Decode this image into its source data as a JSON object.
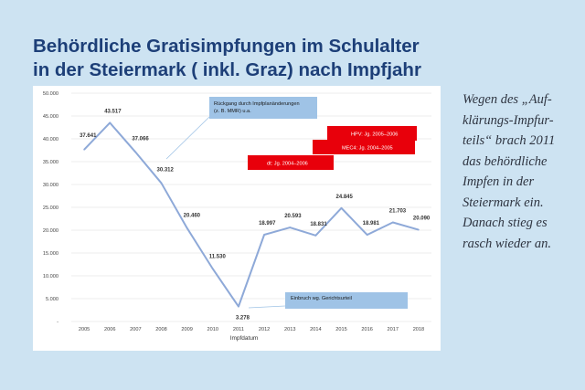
{
  "title_lines": [
    "Behördliche Gratisimpfungen im Schulalter",
    "in der Steiermark ( inkl. Graz) nach Impfjahr"
  ],
  "caption_lines": [
    "Wegen des „Auf-",
    "klärungs-Impfur-",
    "teils“ brach 2011",
    "das behördliche",
    "Impfen in der",
    "Steiermark ein.",
    "Danach stieg es",
    "rasch wieder an."
  ],
  "colors": {
    "background": "#cde3f2",
    "title": "#1d3f78",
    "line": "#8ea9d8",
    "annotation_box": "#9fc3e6",
    "red_box": "#e8000b"
  },
  "chart_data": {
    "type": "line",
    "xlabel": "Impfdatum",
    "ylabel": "",
    "categories": [
      "2005",
      "2006",
      "2007",
      "2008",
      "2009",
      "2010",
      "2011",
      "2012",
      "2013",
      "2014",
      "2015",
      "2016",
      "2017",
      "2018"
    ],
    "series": [
      {
        "values": [
          37641,
          43517,
          37066,
          30312,
          20460,
          11530,
          3278,
          18997,
          20593,
          18831,
          24845,
          18981,
          21703,
          20090
        ]
      }
    ],
    "data_labels": [
      "37.641",
      "43.517",
      "37.066",
      "30.312",
      "20.460",
      "11.530",
      "3.278",
      "18.997",
      "20.593",
      "18.831",
      "24.845",
      "18.981",
      "21.703",
      "20.090"
    ],
    "ylim": [
      0,
      50000
    ],
    "y_ticks": [
      0,
      5000,
      10000,
      15000,
      20000,
      25000,
      30000,
      35000,
      40000,
      45000,
      50000
    ],
    "y_tick_labels": [
      "-",
      "5.000",
      "10.000",
      "15.000",
      "20.000",
      "25.000",
      "30.000",
      "35.000",
      "40.000",
      "45.000",
      "50.000"
    ],
    "grid": true,
    "legend": "none",
    "annotations": [
      {
        "id": "rueckgang",
        "lines": [
          "Rückgang durch Impfplanänderungen",
          "(z. B. MMR) u.a."
        ],
        "style": "blue"
      },
      {
        "id": "einbruch",
        "lines": [
          "Einbruch wg. Gerichtsurteil"
        ],
        "style": "blue"
      },
      {
        "id": "hpv",
        "lines": [
          "HPV: Jg. 2005–2006"
        ],
        "style": "red"
      },
      {
        "id": "mec4",
        "lines": [
          "MEC4: Jg. 2004–2005"
        ],
        "style": "red"
      },
      {
        "id": "dt",
        "lines": [
          "dt: Jg. 2004–2006"
        ],
        "style": "red"
      }
    ]
  }
}
